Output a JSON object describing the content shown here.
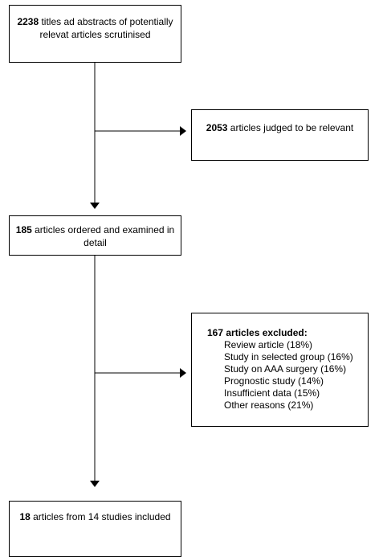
{
  "boxes": {
    "screened": {
      "count": "2238",
      "text": " titles ad abstracts of potentially relevat articles scrutinised"
    },
    "relevant": {
      "count": "2053",
      "text": " articles judged to be relevant"
    },
    "ordered": {
      "count": "185",
      "text": " articles ordered and examined in detail"
    },
    "excluded": {
      "heading": "167 articles excluded:",
      "reasons": [
        "Review article (18%)",
        "Study in selected group (16%)",
        "Study on AAA surgery (16%)",
        "Prognostic study (14%)",
        "Insufficient data (15%)",
        "Other reasons (21%)"
      ]
    },
    "included": {
      "count": "18",
      "text": " articles from 14 studies included"
    }
  }
}
